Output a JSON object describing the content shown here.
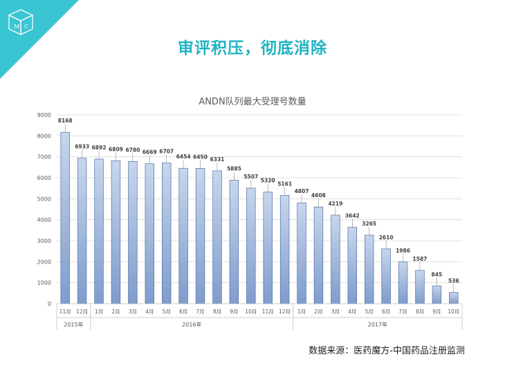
{
  "logo": {
    "letters": [
      "M",
      "C"
    ]
  },
  "slide_title": "审评积压，彻底消除",
  "source_note": "数据来源：医药魔方-中国药品注册监测",
  "colors": {
    "accent": "#3ac5d3",
    "title": "#1fb3c1",
    "bar_top": "#c7d6ec",
    "bar_bottom": "#7f9ccd",
    "bar_stroke": "#4f6fa3"
  },
  "chart_data": {
    "type": "bar",
    "title": "ANDN队列最大受理号数量",
    "categories": [
      "11月",
      "12月",
      "1月",
      "2月",
      "3月",
      "4月",
      "5月",
      "6月",
      "7月",
      "8月",
      "9月",
      "10月",
      "11月",
      "12月",
      "1月",
      "2月",
      "3月",
      "4月",
      "5月",
      "6月",
      "7月",
      "8月",
      "9月",
      "10月"
    ],
    "year_groups": [
      {
        "label": "2015年",
        "count": 2
      },
      {
        "label": "2016年",
        "count": 12
      },
      {
        "label": "2017年",
        "count": 10
      }
    ],
    "values": [
      8168,
      6933,
      6892,
      6809,
      6780,
      6669,
      6707,
      6454,
      6450,
      6331,
      5885,
      5507,
      5320,
      5161,
      4807,
      4608,
      4219,
      3642,
      3265,
      2610,
      1986,
      1587,
      845,
      536
    ],
    "ylim": [
      0,
      9000
    ],
    "yticks": [
      0,
      1000,
      2000,
      3000,
      4000,
      5000,
      6000,
      7000,
      8000,
      9000
    ],
    "grid": true,
    "xlabel": "",
    "ylabel": ""
  }
}
